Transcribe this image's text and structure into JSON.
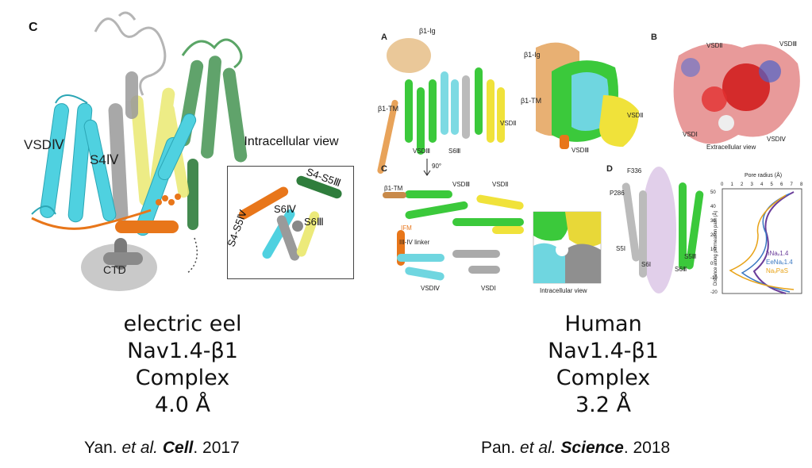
{
  "left": {
    "panel_letter": "C",
    "labels": {
      "vsd4": "VSDⅣ",
      "s4": "S4Ⅳ",
      "ctd": "CTD",
      "inset_title": "Intracellular view",
      "s4s5_3": "S4-S5Ⅲ",
      "s4s5_4": "S4-S5Ⅳ",
      "s6_4": "S6Ⅳ",
      "s6_3": "S6Ⅲ"
    },
    "caption": {
      "line1": "electric eel",
      "line2": "Nav1.4-β1 Complex",
      "line3": "4.0 Å"
    },
    "citation": {
      "authors": "Yan. ",
      "etal": "et al.",
      "journal": "Cell",
      "year": ". 2017"
    }
  },
  "right": {
    "panels": [
      "A",
      "B",
      "C",
      "D"
    ],
    "labels_a": {
      "b1ig": "β1-Ig",
      "b1ig_2": "β1-Ig",
      "b1tm": "β1-TM",
      "b1tm_2": "β1-TM",
      "vsd3": "VSDⅢ",
      "vsd3_2": "VSDⅢ",
      "vsd2": "VSDⅡ",
      "vsd2_2": "VSDⅡ",
      "s6": "S6Ⅲ"
    },
    "labels_b": {
      "vsd2": "VSDⅡ",
      "vsd3": "VSDⅢ",
      "vsd1": "VSDⅠ",
      "vsd4": "VSDⅣ",
      "caption": "Extracellular view"
    },
    "labels_c": {
      "rot": "90°",
      "b1tm": "β1-TM",
      "vsd3": "VSDⅢ",
      "vsd2": "VSDⅡ",
      "ifm": "IFM",
      "linker": "III-IV linker",
      "vsd4": "VSDⅣ",
      "vsd1": "VSDⅠ",
      "inset": "Intracellular view"
    },
    "labels_d": {
      "f336": "F336",
      "p286": "P286",
      "s5_1": "S5Ⅰ",
      "s6_1": "S6Ⅰ",
      "s5_3": "S5Ⅲ",
      "s6_3": "S6Ⅲ"
    },
    "pore_plot": {
      "title": "Pore radius (Å)",
      "ylabel": "Distance along permeation path (Å)",
      "xticks": [
        "0",
        "1",
        "2",
        "3",
        "4",
        "5",
        "6",
        "7",
        "8"
      ],
      "yticks": [
        "50",
        "40",
        "30",
        "20",
        "10",
        "0",
        "-10",
        "-20"
      ],
      "legend": [
        "hNaᵥ1.4",
        "EeNaᵥ1.4",
        "NaᵥPaS"
      ],
      "colors": [
        "#6a3d9a",
        "#3a78c2",
        "#e8a317"
      ]
    },
    "caption": {
      "line1": "Human",
      "line2": "Nav1.4-β1 Complex",
      "line3": "3.2 Å"
    },
    "citation": {
      "authors": "Pan. ",
      "etal": "et al.",
      "journal": "Science",
      "year": ". 2018"
    }
  }
}
